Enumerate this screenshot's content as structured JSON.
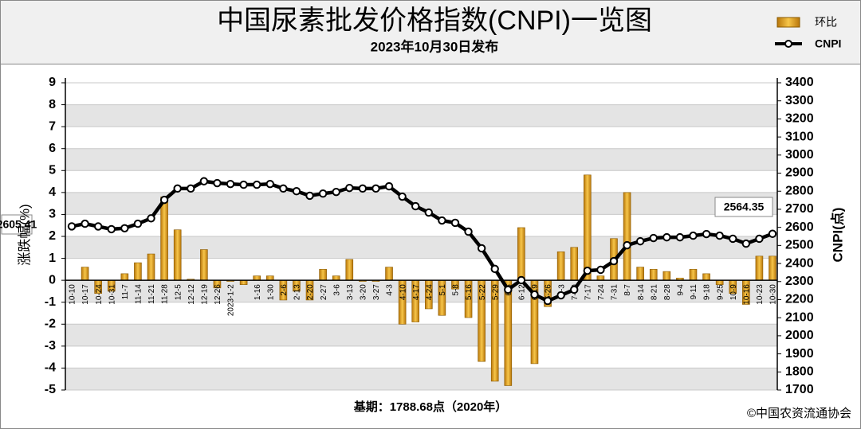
{
  "chart_data": {
    "type": "bar_line",
    "title": "中国尿素批发价格指数(CNPI)一览图",
    "subtitle": "2023年10月30日发布",
    "y_label": "涨跌幅(%)",
    "y2_label": "CNPI(点)",
    "footer": "基期：1788.68点（2020年）",
    "source": "©中国农资流通协会",
    "annotations": [
      "2605.41",
      "2564.35"
    ],
    "categories": [
      "10-10",
      "10-17",
      "10-24",
      "10-31",
      "11-7",
      "11-14",
      "11-21",
      "11-28",
      "12-5",
      "12-12",
      "12-19",
      "12-26",
      "2023-1-2",
      null,
      "1-16",
      "1-30",
      "2-6",
      "2-13",
      "2-20",
      "2-27",
      "3-6",
      "3-13",
      "3-20",
      "3-27",
      "4-3",
      "4-10",
      "4-17",
      "4-24",
      "5-1",
      "5-8",
      "5-16",
      "5-22",
      "5-29",
      "6-5",
      "6-12",
      "6-19",
      "6-26",
      "7-3",
      "7-10",
      "7-17",
      "7-24",
      "7-31",
      "8-7",
      "8-14",
      "8-21",
      "8-28",
      "9-4",
      "9-11",
      "9-18",
      "9-25",
      "10-9",
      "10-16",
      "10-23",
      "10-30"
    ],
    "series": [
      {
        "name": "环比",
        "color": "#e8a21c",
        "values": [
          0,
          0.6,
          -0.6,
          -0.5,
          0.3,
          0.8,
          1.2,
          3.8,
          2.3,
          0.05,
          1.4,
          -0.35,
          -0.05,
          -0.2,
          0.2,
          0.2,
          -0.9,
          -0.5,
          -0.9,
          0.5,
          0.2,
          0.95,
          -0.05,
          -0.05,
          0.6,
          -2.0,
          -1.9,
          -1.3,
          -1.6,
          -0.4,
          -1.7,
          -3.7,
          -4.6,
          -4.8,
          2.4,
          -3.8,
          -1.2,
          1.3,
          1.5,
          4.8,
          0.2,
          1.9,
          4.0,
          0.6,
          0.5,
          0.4,
          0.1,
          0.5,
          0.3,
          -0.2,
          -0.6,
          -1.1,
          1.1,
          1.1
        ]
      },
      {
        "name": "CNPI",
        "color": "#000000",
        "axis": "y2",
        "values": [
          2605.41,
          2620,
          2605,
          2590,
          2595,
          2620,
          2650,
          2752,
          2815,
          2815,
          2855,
          2845,
          2840,
          2836,
          2836,
          2840,
          2815,
          2800,
          2775,
          2787,
          2796,
          2818,
          2815,
          2815,
          2827,
          2770,
          2717,
          2682,
          2638,
          2625,
          2576,
          2484,
          2370,
          2255,
          2308,
          2228,
          2193,
          2224,
          2255,
          2360,
          2365,
          2413,
          2501,
          2523,
          2541,
          2545,
          2545,
          2554,
          2563,
          2554,
          2537,
          2510,
          2537,
          2564.35
        ]
      }
    ],
    "ylim": [
      -5,
      9
    ],
    "yticks": [
      -5,
      -4,
      -3,
      -2,
      -1,
      0,
      1,
      2,
      3,
      4,
      5,
      6,
      7,
      8,
      9
    ],
    "y2lim": [
      1700,
      3400
    ],
    "y2ticks": [
      1700,
      1800,
      1900,
      2000,
      2100,
      2200,
      2300,
      2400,
      2500,
      2600,
      2700,
      2800,
      2900,
      3000,
      3100,
      3200,
      3300,
      3400
    ],
    "grid": true
  }
}
